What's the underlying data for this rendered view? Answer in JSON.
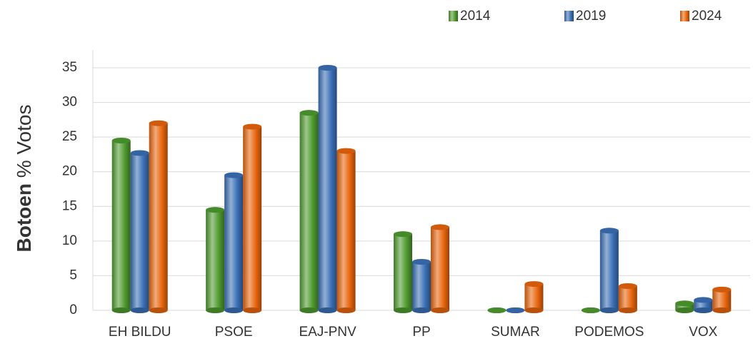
{
  "chart_data": {
    "type": "bar",
    "ylabel": [
      "Botoen",
      "% Votos"
    ],
    "categories": [
      "EH BILDU",
      "PSOE",
      "EAJ-PNV",
      "PP",
      "SUMAR",
      "PODEMOS",
      "VOX"
    ],
    "series": [
      {
        "name": "2014",
        "color": "#4e9a2e",
        "values": [
          24.5,
          14.5,
          28.5,
          11,
          0,
          0,
          1
        ]
      },
      {
        "name": "2019",
        "color": "#3a6fb5",
        "values": [
          22.7,
          19.5,
          35,
          7,
          0,
          11.5,
          1.5
        ]
      },
      {
        "name": "2024",
        "color": "#e8650c",
        "values": [
          27,
          26.5,
          23,
          12,
          3.8,
          3.5,
          3
        ]
      }
    ],
    "ylim": [
      0,
      35
    ],
    "yticks": [
      0,
      5,
      10,
      15,
      20,
      25,
      30,
      35
    ],
    "grid": true,
    "legend": "top-right"
  }
}
